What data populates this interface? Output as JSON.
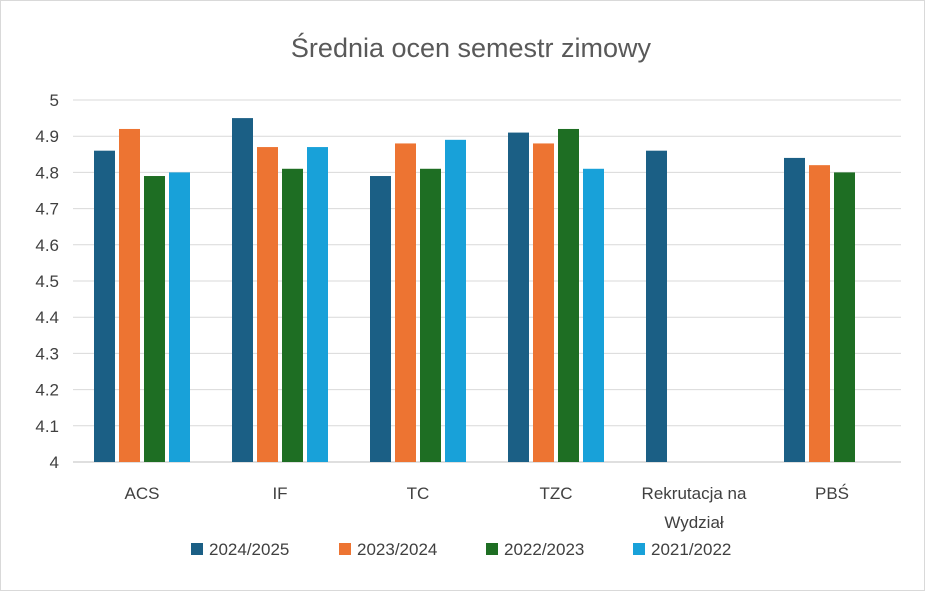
{
  "chart_data": {
    "type": "bar",
    "title": "Średnia ocen semestr zimowy",
    "xlabel": "",
    "ylabel": "",
    "ylim": [
      4,
      5
    ],
    "yticks": [
      "4",
      "4.1",
      "4.2",
      "4.3",
      "4.4",
      "4.5",
      "4.6",
      "4.7",
      "4.8",
      "4.9",
      "5"
    ],
    "grid": true,
    "legend_position": "bottom",
    "categories": [
      [
        "ACS"
      ],
      [
        "IF"
      ],
      [
        "TC"
      ],
      [
        "TZC"
      ],
      [
        "Rekrutacja na",
        "Wydział"
      ],
      [
        "PBŚ"
      ]
    ],
    "series": [
      {
        "name": "2024/2025",
        "color": "#1b5f85",
        "values": [
          4.86,
          4.95,
          4.79,
          4.91,
          4.86,
          4.84
        ]
      },
      {
        "name": "2023/2024",
        "color": "#ed7432",
        "values": [
          4.92,
          4.87,
          4.88,
          4.88,
          null,
          4.82
        ]
      },
      {
        "name": "2022/2023",
        "color": "#1e6e23",
        "values": [
          4.79,
          4.81,
          4.81,
          4.92,
          null,
          4.8
        ]
      },
      {
        "name": "2021/2022",
        "color": "#18a1d9",
        "values": [
          4.8,
          4.87,
          4.89,
          4.81,
          null,
          null
        ]
      }
    ]
  }
}
